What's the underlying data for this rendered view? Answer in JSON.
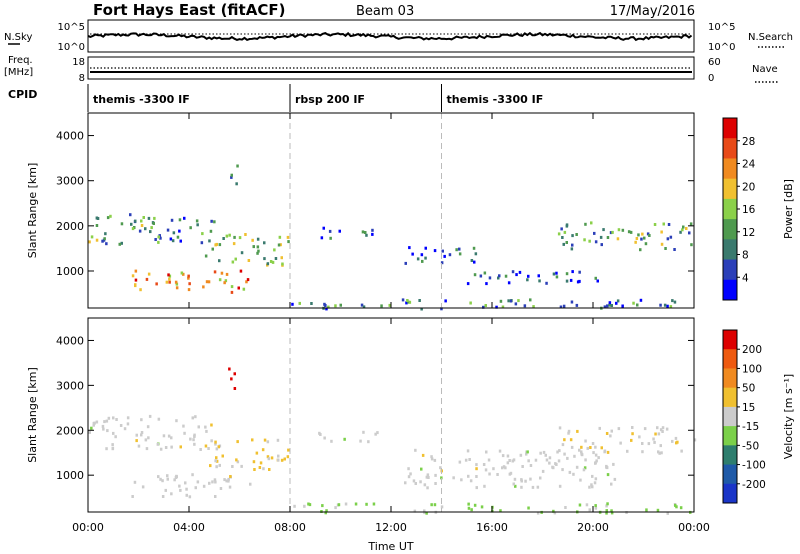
{
  "header": {
    "title": "Fort Hays East (fitACF)",
    "beam": "Beam 03",
    "date": "17/May/2016"
  },
  "panels": {
    "nsky_label": "N.Sky",
    "nsky_ticks": [
      "10^5",
      "10^0"
    ],
    "nsearch_label": "N.Search",
    "nsearch_ticks": [
      "10^5",
      "10^0"
    ],
    "freq_label": "Freq.",
    "freq_unit": "[MHz]",
    "freq_ticks": [
      "18",
      "8"
    ],
    "nave_label": "Nave",
    "nave_ticks": [
      "60",
      "0"
    ],
    "cpid_label": "CPID",
    "cpid_segments": [
      {
        "label": "themis -3300 IF",
        "start_h": 0,
        "end_h": 8
      },
      {
        "label": "rbsp 200 IF",
        "start_h": 8,
        "end_h": 14
      },
      {
        "label": "themis -3300 IF",
        "start_h": 14,
        "end_h": 24
      }
    ]
  },
  "colors": {
    "power_scale": [
      "#0000ff",
      "#2b3fb8",
      "#3a7a6e",
      "#4f9a4f",
      "#8bd04a",
      "#f0c030",
      "#f08a20",
      "#e84a18",
      "#dd0000"
    ],
    "velocity_scale": [
      "#1a35c8",
      "#1f5aa8",
      "#2e7e6e",
      "#7bd04a",
      "#cccccc",
      "#f0c030",
      "#f08a20",
      "#ee5a10",
      "#dd0000"
    ]
  },
  "chart_data": [
    {
      "type": "heatmap",
      "name": "power",
      "ylabel": "Slant Range [km]",
      "xlabel": "Time UT",
      "x_ticks": [
        "00:00",
        "04:00",
        "08:00",
        "12:00",
        "16:00",
        "20:00",
        "00:00"
      ],
      "xlim_hours": [
        0,
        24
      ],
      "y_ticks": [
        1000,
        2000,
        3000,
        4000
      ],
      "ylim": [
        180,
        4500
      ],
      "colorbar": {
        "label": "Power [dB]",
        "ticks": [
          "28",
          "24",
          "20",
          "16",
          "12",
          "8",
          "4"
        ],
        "range": [
          0,
          30
        ]
      },
      "regions": [
        {
          "t0": 0.0,
          "t1": 2.6,
          "r0": 1600,
          "r1": 2350,
          "level": 10
        },
        {
          "t0": 2.6,
          "t1": 5.0,
          "r0": 1650,
          "r1": 2250,
          "level": 9
        },
        {
          "t0": 1.7,
          "t1": 6.4,
          "r0": 550,
          "r1": 1050,
          "level": 22
        },
        {
          "t0": 4.6,
          "t1": 7.9,
          "r0": 1150,
          "r1": 1850,
          "level": 13
        },
        {
          "t0": 5.5,
          "t1": 5.9,
          "r0": 2900,
          "r1": 3500,
          "level": 8
        },
        {
          "t0": 9.0,
          "t1": 11.5,
          "r0": 1750,
          "r1": 2000,
          "level": 6
        },
        {
          "t0": 12.5,
          "t1": 15.5,
          "r0": 1200,
          "r1": 1600,
          "level": 6
        },
        {
          "t0": 15.0,
          "t1": 21.0,
          "r0": 750,
          "r1": 1050,
          "level": 6
        },
        {
          "t0": 18.5,
          "t1": 24.0,
          "r0": 1500,
          "r1": 2100,
          "level": 11
        },
        {
          "t0": 8.0,
          "t1": 24.0,
          "r0": 180,
          "r1": 400,
          "level": 9
        }
      ]
    },
    {
      "type": "heatmap",
      "name": "velocity",
      "ylabel": "Slant Range [km]",
      "xlabel": "Time UT",
      "x_ticks": [
        "00:00",
        "04:00",
        "08:00",
        "12:00",
        "16:00",
        "20:00",
        "00:00"
      ],
      "xlim_hours": [
        0,
        24
      ],
      "y_ticks": [
        1000,
        2000,
        3000,
        4000
      ],
      "ylim": [
        180,
        4500
      ],
      "colorbar": {
        "label": "Velocity [m s⁻¹]",
        "ticks": [
          "200",
          "100",
          "50",
          "15",
          "-15",
          "-50",
          "-100",
          "-200"
        ],
        "range": [
          -250,
          250
        ]
      },
      "regions": [
        {
          "t0": 0.0,
          "t1": 5.0,
          "r0": 1600,
          "r1": 2350,
          "level": 0
        },
        {
          "t0": 1.7,
          "t1": 6.4,
          "r0": 550,
          "r1": 1050,
          "level": 0
        },
        {
          "t0": 4.6,
          "t1": 7.9,
          "r0": 1150,
          "r1": 1850,
          "level": 40
        },
        {
          "t0": 5.5,
          "t1": 5.9,
          "r0": 2900,
          "r1": 3500,
          "level": 220
        },
        {
          "t0": 9.0,
          "t1": 11.5,
          "r0": 1750,
          "r1": 2000,
          "level": 0
        },
        {
          "t0": 12.5,
          "t1": 21.0,
          "r0": 750,
          "r1": 1600,
          "level": 0
        },
        {
          "t0": 18.5,
          "t1": 24.0,
          "r0": 1500,
          "r1": 2100,
          "level": 10
        },
        {
          "t0": 8.0,
          "t1": 24.0,
          "r0": 180,
          "r1": 400,
          "level": -40
        }
      ]
    }
  ]
}
